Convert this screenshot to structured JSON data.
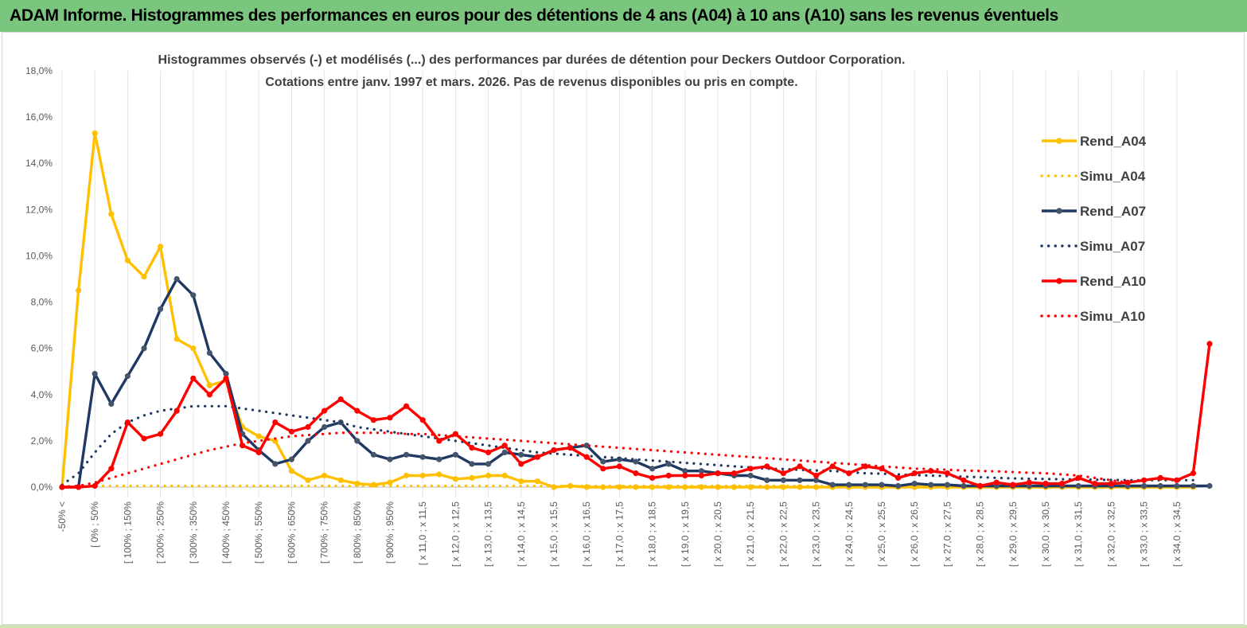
{
  "banner": {
    "title": "ADAM Informe. Histogrammes des performances en euros pour des détentions de 4 ans (A04) à 10 ans (A10) sans les revenus éventuels"
  },
  "chart_data": {
    "type": "line",
    "title": "Histogrammes observés (-) et modélisés (...)  des performances par durées de détention pour Deckers Outdoor Corporation.",
    "subtitle": "Cotations entre janv. 1997 et mars. 2026. Pas de revenus disponibles ou pris en compte.",
    "ylim": [
      0,
      18
    ],
    "y_ticks": [
      "0,0%",
      "2,0%",
      "4,0%",
      "6,0%",
      "8,0%",
      "10,0%",
      "12,0%",
      "14,0%",
      "16,0%",
      "18,0%"
    ],
    "grid": "vertical",
    "legend_position": "right",
    "x_tick_labels": [
      "-50% <",
      "[ 0% ; 50%",
      "[ 100% ; 150%",
      "[ 200% ; 250%",
      "[ 300% ; 350%",
      "[ 400% ; 450%",
      "[ 500% ; 550%",
      "[ 600% ; 650%",
      "[ 700% ; 750%",
      "[ 800% ; 850%",
      "[ 900% ; 950%",
      "[ x 11,0 ; x 11,5",
      "[ x 12,0 ; x 12,5",
      "[ x 13,0 ; x 13,5",
      "[ x 14,0 ; x 14,5",
      "[ x 15,0 ; x 15,5",
      "[ x 16,0 ; x 16,5",
      "[ x 17,0 ; x 17,5",
      "[ x 18,0 ; x 18,5",
      "[ x 19,0 ; x 19,5",
      "[ x 20,0 ; x 20,5",
      "[ x 21,0 ; x 21,5",
      "[ x 22,0 ; x 22,5",
      "[ x 23,0 ; x 23,5",
      "[ x 24,0 ; x 24,5",
      "[ x 25,0 ; x 25,5",
      "[ x 26,0 ; x 26,5",
      "[ x 27,0 ; x 27,5",
      "[ x 28,0 ; x 28,5",
      "[ x 29,0 ; x 29,5",
      "[ x 30,0 ; x 30,5",
      "[ x 31,0 ; x 31,5",
      "[ x 32,0 ; x 32,5",
      "[ x 33,0 ; x 33,5",
      "[ x 34,0 ; x 34,5"
    ],
    "series": [
      {
        "name": "Rend_A04",
        "style": "solid-marker",
        "color": "#ffc000",
        "values": [
          0,
          8.5,
          15.3,
          11.8,
          9.8,
          9.1,
          10.4,
          6.4,
          6.0,
          4.4,
          4.6,
          2.6,
          2.2,
          2.0,
          0.7,
          0.3,
          0.5,
          0.3,
          0.15,
          0.1,
          0.2,
          0.5,
          0.5,
          0.55,
          0.35,
          0.4,
          0.5,
          0.5,
          0.25,
          0.25,
          0.0,
          0.05,
          0.0,
          0.0,
          0.0,
          0.0,
          0.0,
          0.0,
          0.0,
          0.0,
          0.0,
          0.0,
          0.0,
          0.0,
          0.0,
          0.0,
          0.0,
          0.0,
          0.0,
          0.0,
          0.0,
          0.0,
          0.0,
          0.0,
          0.0,
          0.0,
          0.0,
          0.0,
          0.0,
          0.0,
          0.0,
          0.0,
          0.0,
          0.0,
          0.0,
          0.0,
          0.0,
          0.0,
          0.0,
          0.0
        ]
      },
      {
        "name": "Simu_A04",
        "style": "dotted",
        "color": "#ffc000",
        "values": [
          0.05,
          0.05,
          0.05,
          0.05,
          0.05,
          0.05,
          0.05,
          0.05,
          0.05,
          0.05,
          0.05,
          0.05,
          0.05,
          0.05,
          0.05,
          0.05,
          0.05,
          0.05,
          0.05,
          0.05,
          0.05,
          0.05,
          0.05,
          0.05,
          0.05,
          0.05,
          0.05,
          0.05,
          0.05,
          0.05,
          0.05,
          0.05,
          0.05,
          0.05,
          0.05,
          0.05,
          0.05,
          0.05,
          0.05,
          0.05,
          0.05,
          0.05,
          0.05,
          0.05,
          0.05,
          0.05,
          0.05,
          0.05,
          0.05,
          0.05,
          0.05,
          0.05,
          0.05,
          0.05,
          0.05,
          0.05,
          0.05,
          0.05,
          0.05,
          0.05,
          0.05
        ]
      },
      {
        "name": "Rend_A07",
        "style": "solid-marker",
        "color": "#1f3864",
        "values": [
          0,
          0,
          4.9,
          3.6,
          4.8,
          6.0,
          7.7,
          9.0,
          8.3,
          5.8,
          4.9,
          2.3,
          1.6,
          1.0,
          1.2,
          2.0,
          2.6,
          2.8,
          2.0,
          1.4,
          1.2,
          1.4,
          1.3,
          1.2,
          1.4,
          1.0,
          1.0,
          1.5,
          1.4,
          1.3,
          1.6,
          1.7,
          1.8,
          1.1,
          1.2,
          1.1,
          0.8,
          1.0,
          0.7,
          0.7,
          0.6,
          0.5,
          0.5,
          0.3,
          0.3,
          0.3,
          0.3,
          0.1,
          0.1,
          0.1,
          0.1,
          0.05,
          0.15,
          0.1,
          0.1,
          0.05,
          0.05,
          0.05,
          0.05,
          0.05,
          0.05,
          0.05,
          0.05,
          0.05,
          0.05,
          0.05,
          0.05,
          0.05,
          0.05,
          0.05,
          0.05
        ]
      },
      {
        "name": "Simu_A07",
        "style": "dotted",
        "color": "#1f3864",
        "values": [
          0.1,
          0.6,
          1.5,
          2.3,
          2.8,
          3.1,
          3.3,
          3.4,
          3.5,
          3.5,
          3.5,
          3.4,
          3.3,
          3.2,
          3.1,
          3.0,
          2.9,
          2.8,
          2.6,
          2.5,
          2.4,
          2.3,
          2.2,
          2.1,
          2.0,
          1.9,
          1.8,
          1.7,
          1.6,
          1.5,
          1.45,
          1.4,
          1.35,
          1.3,
          1.25,
          1.2,
          1.15,
          1.1,
          1.05,
          1.0,
          0.95,
          0.9,
          0.85,
          0.8,
          0.78,
          0.75,
          0.72,
          0.7,
          0.65,
          0.6,
          0.58,
          0.55,
          0.52,
          0.5,
          0.48,
          0.45,
          0.43,
          0.4,
          0.38,
          0.36,
          0.35,
          0.34,
          0.33,
          0.32,
          0.31,
          0.3,
          0.3,
          0.3,
          0.3,
          0.3
        ]
      },
      {
        "name": "Rend_A10",
        "style": "solid-marker",
        "color": "#ff0000",
        "values": [
          0,
          0,
          0.05,
          0.8,
          2.8,
          2.1,
          2.3,
          3.3,
          4.7,
          4.0,
          4.7,
          1.8,
          1.5,
          2.8,
          2.4,
          2.6,
          3.3,
          3.8,
          3.3,
          2.9,
          3.0,
          3.5,
          2.9,
          2.0,
          2.3,
          1.7,
          1.5,
          1.8,
          1.0,
          1.3,
          1.6,
          1.7,
          1.3,
          0.8,
          0.9,
          0.6,
          0.4,
          0.5,
          0.5,
          0.5,
          0.6,
          0.6,
          0.8,
          0.9,
          0.6,
          0.9,
          0.5,
          0.9,
          0.6,
          0.9,
          0.8,
          0.4,
          0.6,
          0.7,
          0.6,
          0.3,
          0.05,
          0.2,
          0.1,
          0.2,
          0.15,
          0.15,
          0.4,
          0.15,
          0.15,
          0.2,
          0.3,
          0.4,
          0.3,
          0.6,
          6.2
        ]
      },
      {
        "name": "Simu_A10",
        "style": "dotted",
        "color": "#ff0000",
        "values": [
          0.0,
          0.05,
          0.2,
          0.4,
          0.6,
          0.8,
          1.0,
          1.2,
          1.4,
          1.6,
          1.75,
          1.9,
          2.0,
          2.1,
          2.2,
          2.25,
          2.3,
          2.35,
          2.35,
          2.35,
          2.35,
          2.3,
          2.3,
          2.25,
          2.2,
          2.15,
          2.1,
          2.05,
          2.0,
          1.95,
          1.9,
          1.85,
          1.8,
          1.75,
          1.7,
          1.65,
          1.6,
          1.55,
          1.5,
          1.45,
          1.4,
          1.35,
          1.3,
          1.25,
          1.2,
          1.15,
          1.1,
          1.05,
          1.0,
          0.95,
          0.9,
          0.85,
          0.8,
          0.78,
          0.75,
          0.72,
          0.7,
          0.68,
          0.65,
          0.62,
          0.6,
          0.55,
          0.5,
          0.4,
          0.3,
          0.2
        ]
      }
    ]
  }
}
